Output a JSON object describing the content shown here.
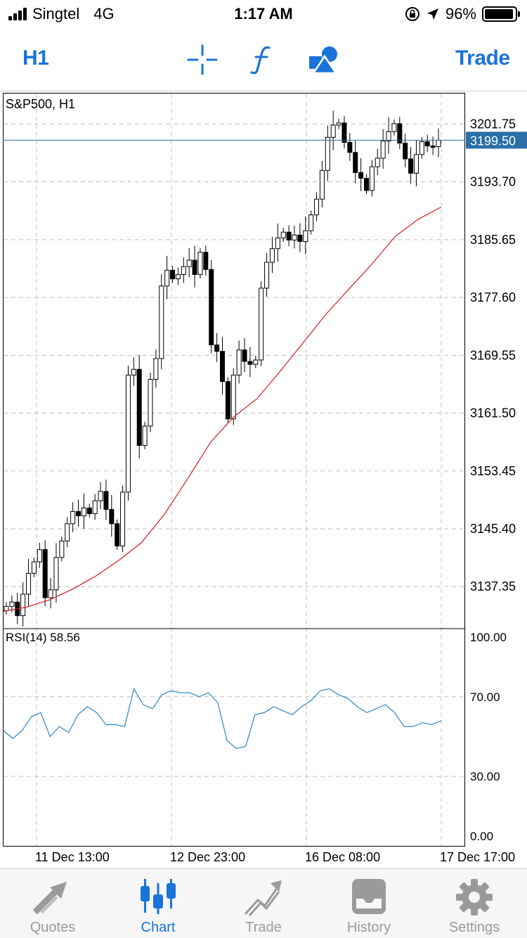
{
  "status_bar": {
    "carrier": "Singtel",
    "network": "4G",
    "time": "1:17 AM",
    "battery": "96%",
    "battery_level": 0.96
  },
  "toolbar": {
    "timeframe": "H1",
    "trade_label": "Trade",
    "icons": [
      "crosshair-icon",
      "function-icon",
      "objects-icon"
    ]
  },
  "chart": {
    "symbol_label": "S&P500, H1",
    "current_price": "3199.50",
    "price_ticks": [
      "3201.75",
      "3193.70",
      "3185.65",
      "3177.60",
      "3169.55",
      "3161.50",
      "3153.45",
      "3145.40",
      "3137.35"
    ],
    "rsi_label": "RSI(14) 58.56",
    "rsi_ticks": [
      "100.00",
      "70.00",
      "30.00",
      "0.00"
    ],
    "time_ticks": [
      "11 Dec 13:00",
      "12 Dec 23:00",
      "16 Dec 08:00",
      "17 Dec 17:00"
    ],
    "colors": {
      "ma_line": "#d41f1f",
      "rsi_line": "#2f86c6",
      "price_marker": "#2a6fa5",
      "grid": "#bdbdbd"
    }
  },
  "chart_data": {
    "type": "line",
    "ylim": [
      3131.5,
      3206.0
    ],
    "candles_close": [
      3134.6,
      3135.2,
      3133.3,
      3136.3,
      3139.2,
      3140.8,
      3142.5,
      3135.8,
      3136.9,
      3141.4,
      3143.7,
      3146.1,
      3147.8,
      3147.2,
      3148.3,
      3147.5,
      3149.3,
      3150.6,
      3148.1,
      3146.1,
      3143.0,
      3150.5,
      3166.8,
      3167.6,
      3157.0,
      3159.7,
      3166.2,
      3169.1,
      3179.2,
      3181.4,
      3180.2,
      3180.8,
      3181.9,
      3182.8,
      3180.8,
      3183.9,
      3181.5,
      3171.0,
      3170.1,
      3165.9,
      3160.7,
      3166.8,
      3170.3,
      3168.7,
      3168.3,
      3168.9,
      3178.9,
      3182.5,
      3184.4,
      3185.9,
      3186.7,
      3185.6,
      3186.3,
      3185.4,
      3186.9,
      3189.1,
      3191.3,
      3195.3,
      3199.9,
      3201.6,
      3201.9,
      3199.2,
      3197.8,
      3195.0,
      3194.2,
      3192.5,
      3195.8,
      3197.0,
      3199.4,
      3200.7,
      3201.8,
      3199.1,
      3196.9,
      3194.9,
      3197.5,
      3199.3,
      3198.7,
      3198.6,
      3199.5
    ],
    "moving_average": [
      3133.9,
      3134.5,
      3135.5,
      3137.0,
      3138.8,
      3141.0,
      3143.5,
      3147.5,
      3152.4,
      3157.5,
      3161.0,
      3163.5,
      3167.3,
      3171.3,
      3175.3,
      3178.8,
      3182.3,
      3186.1,
      3188.5,
      3190.2
    ],
    "rsi": [
      53,
      49,
      53,
      60,
      62,
      50,
      55,
      52,
      61,
      65,
      62,
      56,
      56,
      55,
      74,
      66,
      64,
      71,
      73,
      72,
      72,
      70,
      72,
      67,
      48,
      44,
      45,
      61,
      62,
      65,
      63,
      61,
      65,
      68,
      73,
      74,
      71,
      69,
      65,
      62,
      64,
      66,
      62,
      55,
      55,
      57,
      56,
      58
    ],
    "rsi_ylim": [
      0,
      100
    ],
    "grid": true
  },
  "tabs": [
    {
      "label": "Quotes",
      "icon": "quotes-icon",
      "active": false
    },
    {
      "label": "Chart",
      "icon": "chart-icon",
      "active": true
    },
    {
      "label": "Trade",
      "icon": "trade-icon",
      "active": false
    },
    {
      "label": "History",
      "icon": "history-icon",
      "active": false
    },
    {
      "label": "Settings",
      "icon": "gear-icon",
      "active": false
    }
  ]
}
